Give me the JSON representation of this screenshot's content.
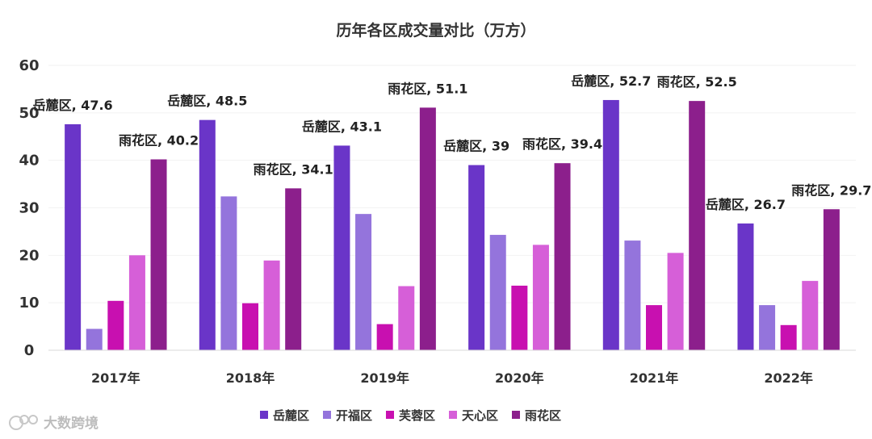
{
  "chart_data": {
    "type": "bar",
    "title": "历年各区成交量对比（万方）",
    "categories": [
      "2017年",
      "2018年",
      "2019年",
      "2020年",
      "2021年",
      "2022年"
    ],
    "ylim": [
      0,
      60
    ],
    "yticks": [
      0,
      10,
      20,
      30,
      40,
      50,
      60
    ],
    "xlabel": "",
    "ylabel": "",
    "legend_position": "bottom",
    "series": [
      {
        "name": "岳麓区",
        "color": "#6a35c8",
        "values": [
          47.6,
          48.5,
          43.1,
          39,
          52.7,
          26.7
        ],
        "labels": [
          "岳麓区, 47.6",
          "岳麓区, 48.5",
          "岳麓区, 43.1",
          "岳麓区, 39",
          "岳麓区, 52.7",
          "岳麓区, 26.7"
        ]
      },
      {
        "name": "开福区",
        "color": "#9474dc",
        "values": [
          4.5,
          32.4,
          28.7,
          24.3,
          23.1,
          9.5
        ]
      },
      {
        "name": "芙蓉区",
        "color": "#c810b0",
        "values": [
          10.4,
          9.9,
          5.5,
          13.6,
          9.5,
          5.3
        ]
      },
      {
        "name": "天心区",
        "color": "#d65fd8",
        "values": [
          20,
          18.9,
          13.5,
          22.2,
          20.5,
          14.6
        ]
      },
      {
        "name": "雨花区",
        "color": "#8c1f8c",
        "values": [
          40.2,
          34.1,
          51.1,
          39.4,
          52.5,
          29.7
        ],
        "labels": [
          "雨花区, 40.2",
          "雨花区, 34.1",
          "雨花区, 51.1",
          "雨花区, 39.4",
          "雨花区, 52.5",
          "雨花区, 29.7"
        ]
      }
    ]
  },
  "watermark": {
    "text": "大数跨境"
  }
}
